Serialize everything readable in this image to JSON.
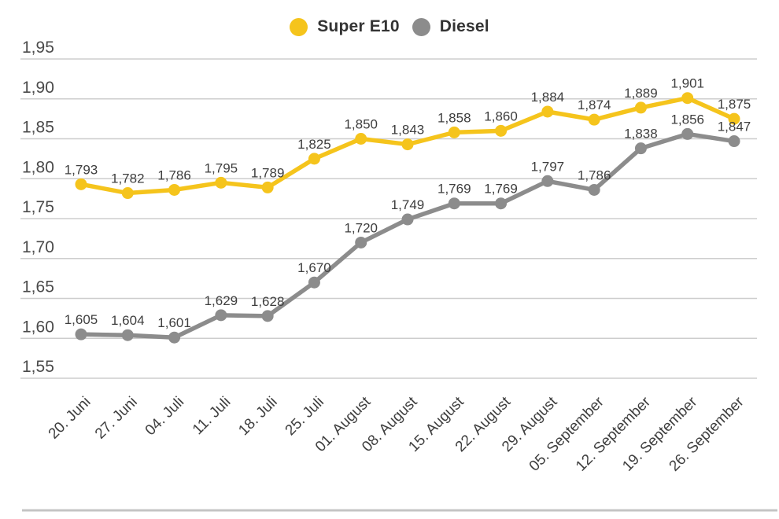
{
  "legend": {
    "items": [
      {
        "label": "Super E10",
        "color": "#F5C41C"
      },
      {
        "label": "Diesel",
        "color": "#8C8C8C"
      }
    ]
  },
  "chart_data": {
    "type": "line",
    "title": "",
    "xlabel": "",
    "ylabel": "",
    "categories": [
      "20. Juni",
      "27. Juni",
      "04. Juli",
      "11. Juli",
      "18. Juli",
      "25. Juli",
      "01. August",
      "08. August",
      "15. August",
      "22. August",
      "29. August",
      "05. September",
      "12. September",
      "19. September",
      "26. September"
    ],
    "series": [
      {
        "name": "Super E10",
        "color": "#F5C41C",
        "values": [
          1.793,
          1.782,
          1.786,
          1.795,
          1.789,
          1.825,
          1.85,
          1.843,
          1.858,
          1.86,
          1.884,
          1.874,
          1.889,
          1.901,
          1.875
        ],
        "labels": [
          "1,793",
          "1,782",
          "1,786",
          "1,795",
          "1,789",
          "1,825",
          "1,850",
          "1,843",
          "1,858",
          "1,860",
          "1,884",
          "1,874",
          "1,889",
          "1,901",
          "1,875"
        ]
      },
      {
        "name": "Diesel",
        "color": "#8C8C8C",
        "values": [
          1.605,
          1.604,
          1.601,
          1.629,
          1.628,
          1.67,
          1.72,
          1.749,
          1.769,
          1.769,
          1.797,
          1.786,
          1.838,
          1.856,
          1.847
        ],
        "labels": [
          "1,605",
          "1,604",
          "1,601",
          "1,629",
          "1,628",
          "1,670",
          "1,720",
          "1,749",
          "1,769",
          "1,769",
          "1,797",
          "1,786",
          "1,838",
          "1,856",
          "1,847"
        ]
      }
    ],
    "ylim": [
      1.55,
      1.95
    ],
    "ytick_step": 0.05,
    "ytick_labels": [
      "1,95",
      "1,90",
      "1,85",
      "1,80",
      "1,75",
      "1,70",
      "1,65",
      "1,60",
      "1,55"
    ],
    "grid": true,
    "legend_position": "top-center",
    "point_labels": true,
    "decimal_separator": ","
  },
  "colors": {
    "grid": "#CDCDCD",
    "axis_text": "#4A4A4A",
    "data_label_text": "#3E3E3E",
    "legend_text": "#333333",
    "divider": "#C4C4C4"
  }
}
